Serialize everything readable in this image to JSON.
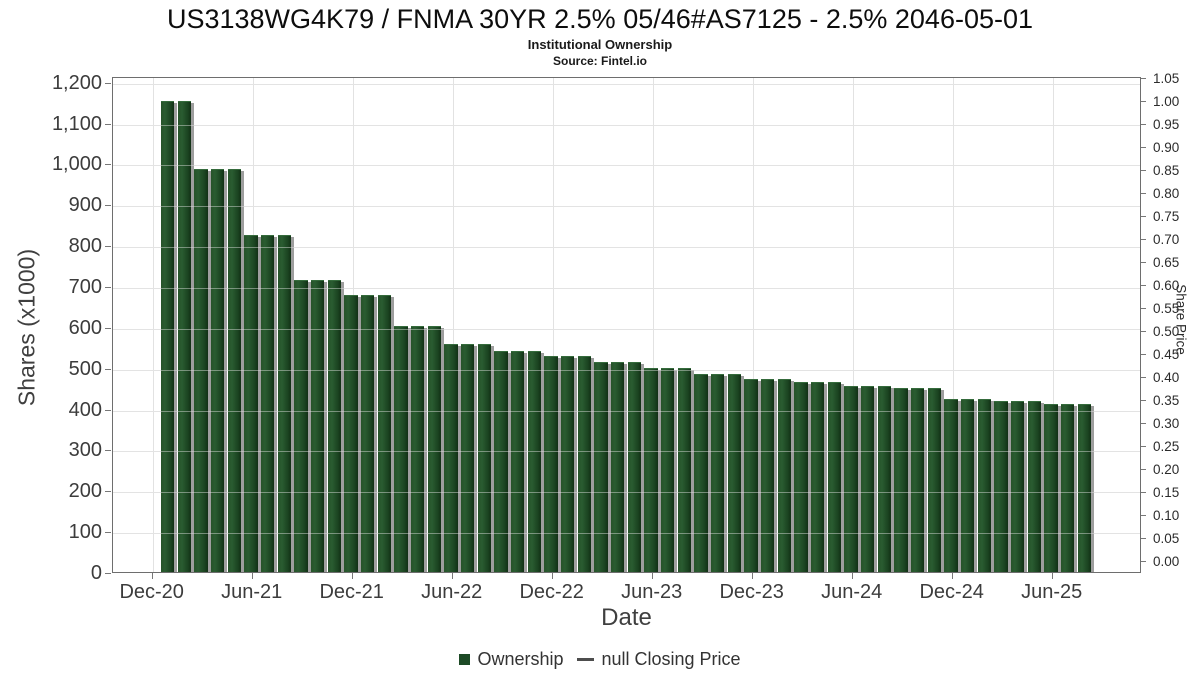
{
  "title": "US3138WG4K79 / FNMA 30YR 2.5% 05/46#AS7125 - 2.5% 2046-05-01",
  "subtitle": "Institutional Ownership",
  "source": "Source: Fintel.io",
  "legend": {
    "items": [
      {
        "label": "Ownership",
        "marker": "square",
        "color": "#1d4a26"
      },
      {
        "label": "null Closing Price",
        "marker": "dash",
        "color": "#4d4d4d"
      }
    ]
  },
  "chart_data": {
    "type": "bar",
    "title": "US3138WG4K79 / FNMA 30YR 2.5% 05/46#AS7125 - 2.5% 2046-05-01",
    "subtitle": "Institutional Ownership",
    "source": "Source: Fintel.io",
    "xlabel": "Date",
    "ylabel_left": "Shares (x1000)",
    "ylabel_right": "Share Price",
    "legend_position": "bottom",
    "grid": true,
    "bar_color": "#1d4a26",
    "bar_shadow_color": "#9e9e9e",
    "grid_color": "#e2e2e2",
    "ylim_left": [
      0,
      1200
    ],
    "ylim_right": [
      0,
      1.05
    ],
    "y_left_ticks": [
      0,
      100,
      200,
      300,
      400,
      500,
      600,
      700,
      800,
      900,
      1000,
      1100,
      1200
    ],
    "y_left_tick_labels": [
      "0",
      "100",
      "200",
      "300",
      "400",
      "500",
      "600",
      "700",
      "800",
      "900",
      "1,000",
      "1,100",
      "1,200"
    ],
    "y_right_tick_labels": [
      "0.00",
      "0.05",
      "0.10",
      "0.15",
      "0.20",
      "0.25",
      "0.30",
      "0.35",
      "0.40",
      "0.45",
      "0.50",
      "0.55",
      "0.60",
      "0.65",
      "0.70",
      "0.75",
      "0.80",
      "0.85",
      "0.90",
      "0.95",
      "1.00",
      "1.05"
    ],
    "x_tick_labels": [
      "Dec-20",
      "Jun-21",
      "Dec-21",
      "Jun-22",
      "Dec-22",
      "Jun-23",
      "Dec-23",
      "Jun-24",
      "Dec-24",
      "Jun-25"
    ],
    "categories": [
      "Jan-21",
      "Feb-21",
      "Mar-21",
      "Apr-21",
      "May-21",
      "Jun-21",
      "Jul-21",
      "Aug-21",
      "Sep-21",
      "Oct-21",
      "Nov-21",
      "Dec-21",
      "Jan-22",
      "Feb-22",
      "Mar-22",
      "Apr-22",
      "May-22",
      "Jun-22",
      "Jul-22",
      "Aug-22",
      "Sep-22",
      "Oct-22",
      "Nov-22",
      "Dec-22",
      "Jan-23",
      "Feb-23",
      "Mar-23",
      "Apr-23",
      "May-23",
      "Jun-23",
      "Jul-23",
      "Aug-23",
      "Sep-23",
      "Oct-23",
      "Nov-23",
      "Dec-23",
      "Jan-24",
      "Feb-24",
      "Mar-24",
      "Apr-24",
      "May-24",
      "Jun-24",
      "Jul-24",
      "Aug-24",
      "Sep-24",
      "Oct-24",
      "Nov-24",
      "Dec-24",
      "Jan-25",
      "Feb-25",
      "Mar-25",
      "Apr-25",
      "May-25",
      "Jun-25",
      "Jul-25",
      "Aug-25"
    ],
    "series": [
      {
        "name": "Ownership",
        "units": "shares x1000",
        "values": [
          1158,
          1158,
          990,
          990,
          990,
          829,
          829,
          829,
          719,
          719,
          719,
          683,
          683,
          683,
          607,
          607,
          607,
          564,
          564,
          564,
          546,
          546,
          546,
          534,
          534,
          534,
          518,
          518,
          518,
          503,
          503,
          503,
          489,
          489,
          489,
          477,
          477,
          477,
          470,
          470,
          470,
          461,
          461,
          461,
          455,
          455,
          455,
          428,
          428,
          428,
          424,
          424,
          424,
          417,
          417,
          417
        ]
      },
      {
        "name": "null Closing Price",
        "units": "price",
        "values": []
      }
    ]
  }
}
